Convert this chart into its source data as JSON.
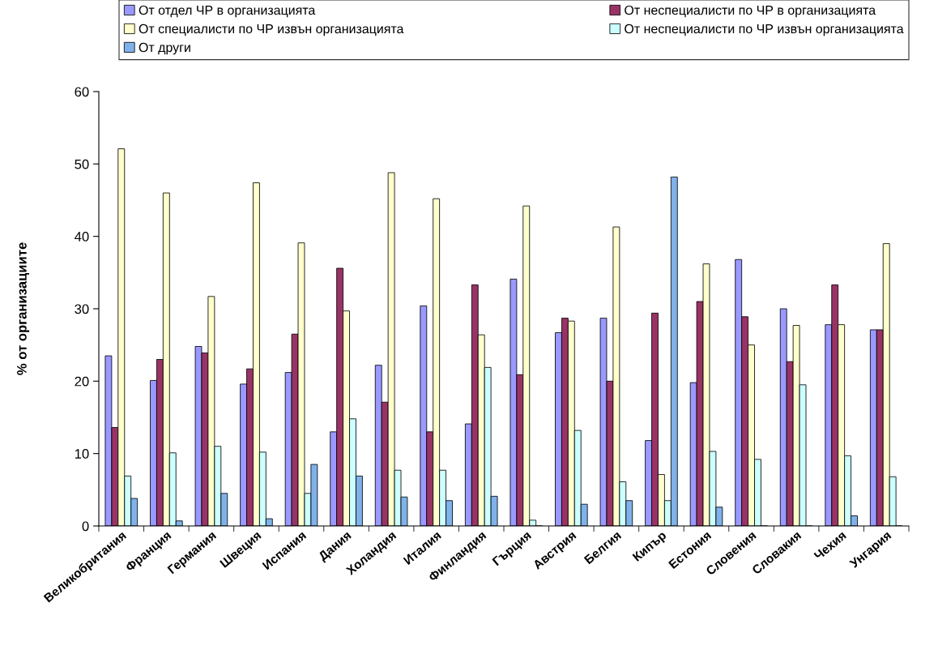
{
  "chart_data": {
    "type": "bar",
    "ylabel": "% от организациите",
    "categories": [
      "Великобритания",
      "Франция",
      "Германия",
      "Швеция",
      "Испания",
      "Дания",
      "Холандия",
      "Италия",
      "Финландия",
      "Гърция",
      "Австрия",
      "Белгия",
      "Кипър",
      "Естония",
      "Словения",
      "Словакия",
      "Чехия",
      "Унгария"
    ],
    "series": [
      {
        "name": "От отдел ЧР в организацията",
        "color": "#9999ff",
        "values": [
          23.5,
          20.1,
          24.8,
          19.6,
          21.2,
          13.0,
          22.2,
          30.4,
          14.1,
          34.1,
          26.7,
          28.7,
          11.8,
          19.8,
          36.8,
          30.0,
          27.8,
          27.1
        ]
      },
      {
        "name": "От неспециалисти по ЧР в организацията",
        "color": "#993366",
        "values": [
          13.6,
          23.0,
          23.9,
          21.7,
          26.5,
          35.6,
          17.1,
          13.0,
          33.3,
          20.9,
          28.7,
          20.0,
          29.4,
          31.0,
          28.9,
          22.7,
          33.3,
          27.1
        ]
      },
      {
        "name": "От специалисти по ЧР извън организацията",
        "color": "#ffffcc",
        "values": [
          52.1,
          46.0,
          31.7,
          47.4,
          39.1,
          29.7,
          48.8,
          45.2,
          26.4,
          44.2,
          28.3,
          41.3,
          7.1,
          36.2,
          25.0,
          27.7,
          27.8,
          39.0
        ]
      },
      {
        "name": "От неспециалисти по ЧР извън организацията",
        "color": "#ccffff",
        "values": [
          6.9,
          10.1,
          11.0,
          10.2,
          4.5,
          14.8,
          7.7,
          7.7,
          21.9,
          0.8,
          13.2,
          6.1,
          3.5,
          10.3,
          9.2,
          19.5,
          9.7,
          6.8
        ]
      },
      {
        "name": "От други",
        "color": "#7fb2ea",
        "values": [
          3.8,
          0.7,
          4.5,
          1.0,
          8.5,
          6.9,
          4.0,
          3.5,
          4.1,
          0,
          3.0,
          3.5,
          48.2,
          2.6,
          0,
          0,
          1.4,
          0
        ]
      }
    ],
    "ylim": [
      0,
      60
    ],
    "yticks": [
      0,
      10,
      20,
      30,
      40,
      50,
      60
    ],
    "grid": false,
    "legend": "top"
  }
}
